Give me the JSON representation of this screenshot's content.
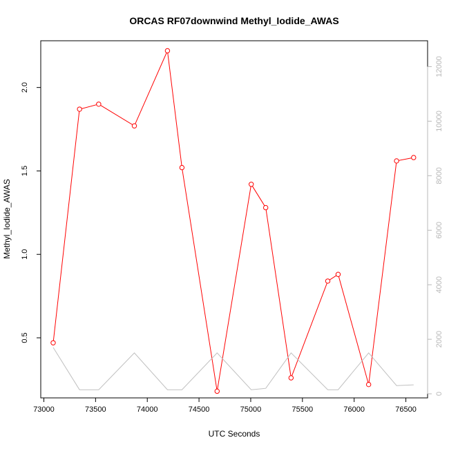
{
  "chart_data": {
    "type": "line",
    "title": "ORCAS RF07downwind Methyl_Iodide_AWAS",
    "xlabel": "UTC Seconds",
    "ylabel": "Methyl_Iodide_AWAS",
    "xlim": [
      72970,
      76710
    ],
    "ylim": [
      0.14,
      2.28
    ],
    "y2lim": [
      -150,
      12950
    ],
    "x_ticks": [
      73000,
      73500,
      74000,
      74500,
      75000,
      75500,
      76000,
      76500
    ],
    "y_ticks": [
      0.5,
      1.0,
      1.5,
      2.0
    ],
    "y_tick_labels": [
      "0.5",
      "1.0",
      "1.5",
      "2.0"
    ],
    "y2_ticks": [
      0,
      2000,
      4000,
      6000,
      8000,
      10000,
      12000
    ],
    "grid": false,
    "series": [
      {
        "axis": "left",
        "color": "#ff0000",
        "marker": "open-circle",
        "x": [
          73090,
          73345,
          73530,
          73875,
          74195,
          74335,
          74675,
          75005,
          75145,
          75390,
          75745,
          75845,
          76140,
          76410,
          76575
        ],
        "y": [
          0.47,
          1.87,
          1.9,
          1.77,
          2.22,
          1.52,
          0.18,
          1.42,
          1.28,
          0.26,
          0.84,
          0.88,
          0.22,
          1.56,
          1.58
        ]
      },
      {
        "axis": "right",
        "color": "#c0c0c0",
        "marker": "none",
        "x": [
          73090,
          73345,
          73530,
          73875,
          74195,
          74335,
          74675,
          75005,
          75145,
          75390,
          75745,
          75845,
          76140,
          76410,
          76575
        ],
        "y": [
          1700,
          150,
          150,
          1500,
          150,
          150,
          1500,
          150,
          200,
          1500,
          150,
          150,
          1500,
          300,
          330
        ]
      }
    ]
  }
}
